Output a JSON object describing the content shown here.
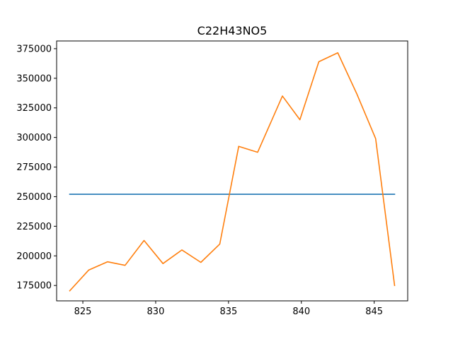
{
  "chart_data": {
    "type": "line",
    "title": "C22H43NO5",
    "xlabel": "",
    "ylabel": "",
    "xlim": [
      823.2,
      847.3
    ],
    "ylim": [
      162000,
      381500
    ],
    "xticks": [
      825,
      830,
      835,
      840,
      845
    ],
    "yticks": [
      175000,
      200000,
      225000,
      250000,
      275000,
      300000,
      325000,
      350000,
      375000
    ],
    "grid": false,
    "legend": "none",
    "series": [
      {
        "color": "#1f77b4",
        "x": [
          824.1,
          846.4
        ],
        "y": [
          252000,
          252000
        ]
      },
      {
        "color": "#ff7f0e",
        "x": [
          824.1,
          825.4,
          826.7,
          827.9,
          829.2,
          830.5,
          831.8,
          833.1,
          834.4,
          835.7,
          837.0,
          838.7,
          839.9,
          841.2,
          842.5,
          843.8,
          845.1,
          846.4
        ],
        "y": [
          170500,
          188000,
          195000,
          192000,
          213000,
          193500,
          205000,
          194500,
          210000,
          292500,
          287500,
          335000,
          315000,
          364000,
          371500,
          337000,
          299000,
          175000
        ]
      }
    ]
  }
}
